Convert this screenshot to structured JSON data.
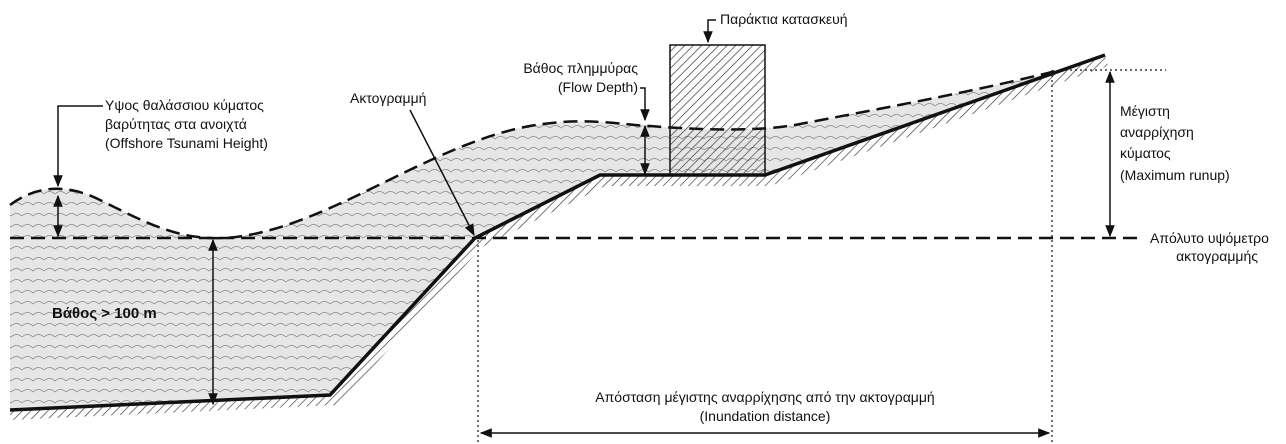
{
  "labels": {
    "offshore": [
      "Υψος θαλάσσιου κύματος",
      "βαρύτητας  στα ανοιχτά",
      "(Offshore Tsunami Height)"
    ],
    "shoreline": "Ακτογραμμή",
    "flow_depth": [
      "Βάθος πλημμύρας",
      "(Flow Depth)"
    ],
    "structure": "Παράκτια κατασκευή",
    "runup": [
      "Μέγιστη",
      "αναρρίχηση",
      "κύματος",
      "(Maximum runup)"
    ],
    "datum": [
      "Απόλυτο υψόμετρο",
      "ακτογραμμής"
    ],
    "depth": "Βάθος > 100 m",
    "inundation": [
      "Απόσταση μέγιστης αναρρίχησης από την ακτογραμμή",
      "(Inundation distance)"
    ]
  }
}
